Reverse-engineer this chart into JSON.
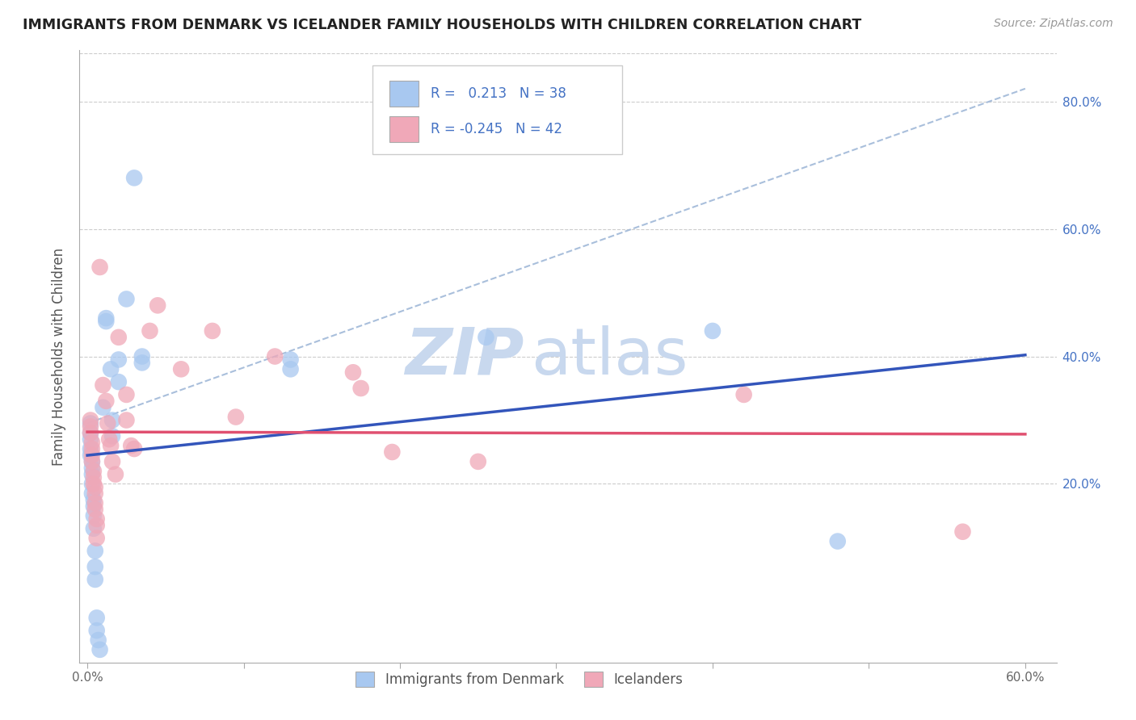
{
  "title": "IMMIGRANTS FROM DENMARK VS ICELANDER FAMILY HOUSEHOLDS WITH CHILDREN CORRELATION CHART",
  "source": "Source: ZipAtlas.com",
  "ylabel": "Family Households with Children",
  "ytick_vals": [
    0.0,
    0.2,
    0.4,
    0.6,
    0.8
  ],
  "ytick_labels": [
    "",
    "20.0%",
    "40.0%",
    "60.0%",
    "80.0%"
  ],
  "xtick_vals": [
    0.0,
    0.1,
    0.2,
    0.3,
    0.4,
    0.5,
    0.6
  ],
  "xtick_labels": [
    "0.0%",
    "",
    "",
    "",
    "",
    "",
    "60.0%"
  ],
  "xlim": [
    -0.005,
    0.62
  ],
  "ylim": [
    -0.08,
    0.88
  ],
  "legend1_label": "R =   0.213   N = 38",
  "legend2_label": "R = -0.245   N = 42",
  "color_blue": "#a8c8f0",
  "color_pink": "#f0a8b8",
  "line_blue": "#3355bb",
  "line_pink": "#e05070",
  "line_dashed_color": "#a0b8d8",
  "watermark_zip_color": "#c8d8ee",
  "watermark_atlas_color": "#c8d8ee",
  "blue_points": [
    [
      0.002,
      0.295
    ],
    [
      0.002,
      0.28
    ],
    [
      0.002,
      0.27
    ],
    [
      0.002,
      0.255
    ],
    [
      0.002,
      0.245
    ],
    [
      0.003,
      0.235
    ],
    [
      0.003,
      0.225
    ],
    [
      0.003,
      0.215
    ],
    [
      0.003,
      0.2
    ],
    [
      0.003,
      0.185
    ],
    [
      0.004,
      0.175
    ],
    [
      0.004,
      0.165
    ],
    [
      0.004,
      0.15
    ],
    [
      0.004,
      0.13
    ],
    [
      0.005,
      0.095
    ],
    [
      0.005,
      0.07
    ],
    [
      0.005,
      0.05
    ],
    [
      0.006,
      -0.01
    ],
    [
      0.006,
      -0.03
    ],
    [
      0.007,
      -0.045
    ],
    [
      0.008,
      -0.06
    ],
    [
      0.01,
      0.32
    ],
    [
      0.012,
      0.46
    ],
    [
      0.012,
      0.455
    ],
    [
      0.015,
      0.38
    ],
    [
      0.016,
      0.3
    ],
    [
      0.016,
      0.275
    ],
    [
      0.02,
      0.395
    ],
    [
      0.02,
      0.36
    ],
    [
      0.025,
      0.49
    ],
    [
      0.03,
      0.68
    ],
    [
      0.035,
      0.4
    ],
    [
      0.035,
      0.39
    ],
    [
      0.13,
      0.395
    ],
    [
      0.13,
      0.38
    ],
    [
      0.255,
      0.43
    ],
    [
      0.4,
      0.44
    ],
    [
      0.48,
      0.11
    ]
  ],
  "pink_points": [
    [
      0.002,
      0.3
    ],
    [
      0.002,
      0.29
    ],
    [
      0.002,
      0.28
    ],
    [
      0.003,
      0.265
    ],
    [
      0.003,
      0.255
    ],
    [
      0.003,
      0.245
    ],
    [
      0.003,
      0.235
    ],
    [
      0.004,
      0.22
    ],
    [
      0.004,
      0.21
    ],
    [
      0.004,
      0.2
    ],
    [
      0.005,
      0.195
    ],
    [
      0.005,
      0.185
    ],
    [
      0.005,
      0.17
    ],
    [
      0.005,
      0.16
    ],
    [
      0.006,
      0.145
    ],
    [
      0.006,
      0.135
    ],
    [
      0.006,
      0.115
    ],
    [
      0.008,
      0.54
    ],
    [
      0.01,
      0.355
    ],
    [
      0.012,
      0.33
    ],
    [
      0.013,
      0.295
    ],
    [
      0.014,
      0.27
    ],
    [
      0.015,
      0.26
    ],
    [
      0.016,
      0.235
    ],
    [
      0.018,
      0.215
    ],
    [
      0.02,
      0.43
    ],
    [
      0.025,
      0.34
    ],
    [
      0.025,
      0.3
    ],
    [
      0.028,
      0.26
    ],
    [
      0.03,
      0.255
    ],
    [
      0.04,
      0.44
    ],
    [
      0.045,
      0.48
    ],
    [
      0.06,
      0.38
    ],
    [
      0.08,
      0.44
    ],
    [
      0.095,
      0.305
    ],
    [
      0.12,
      0.4
    ],
    [
      0.17,
      0.375
    ],
    [
      0.175,
      0.35
    ],
    [
      0.195,
      0.25
    ],
    [
      0.25,
      0.235
    ],
    [
      0.42,
      0.34
    ],
    [
      0.56,
      0.125
    ]
  ],
  "dashed_line": [
    [
      0.0,
      0.295
    ],
    [
      0.6,
      0.82
    ]
  ]
}
